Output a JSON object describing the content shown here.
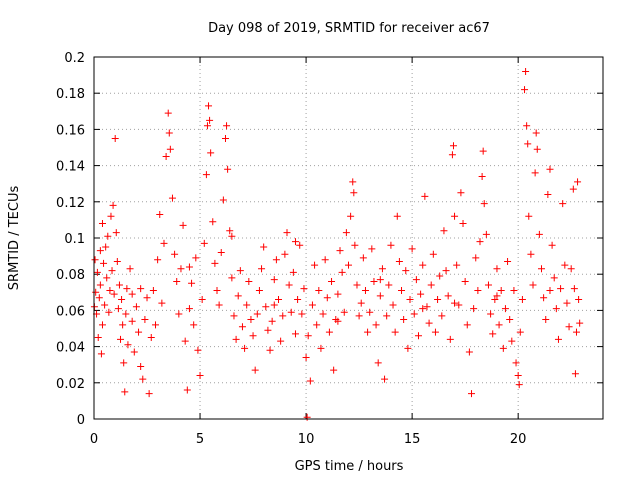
{
  "chart_data": {
    "type": "scatter",
    "title": "Day 098 of 2019, SRMTID for receiver ac67",
    "xlabel": "GPS time / hours",
    "ylabel": "SRMTID / TECUs",
    "xlim": [
      0,
      24
    ],
    "ylim": [
      0,
      0.2
    ],
    "x_ticks": [
      0,
      5,
      10,
      15,
      20
    ],
    "x_tick_labels": [
      "0",
      "5",
      "10",
      "15",
      "20"
    ],
    "y_ticks": [
      0,
      0.02,
      0.04,
      0.06,
      0.08,
      0.1,
      0.12,
      0.14,
      0.16,
      0.18,
      0.2
    ],
    "y_tick_labels": [
      "0",
      "0.02",
      "0.04",
      "0.06",
      "0.08",
      "0.1",
      "0.12",
      "0.14",
      "0.16",
      "0.18",
      "0.2"
    ],
    "grid": true,
    "marker": "+",
    "color": "#ff0000",
    "series": [
      {
        "name": "SRMTID",
        "points": [
          [
            0.02,
            0.062
          ],
          [
            0.05,
            0.088
          ],
          [
            0.08,
            0.07
          ],
          [
            0.12,
            0.058
          ],
          [
            0.16,
            0.081
          ],
          [
            0.2,
            0.045
          ],
          [
            0.25,
            0.067
          ],
          [
            0.3,
            0.074
          ],
          [
            0.35,
            0.036
          ],
          [
            0.4,
            0.052
          ],
          [
            0.45,
            0.086
          ],
          [
            0.5,
            0.063
          ],
          [
            0.55,
            0.095
          ],
          [
            0.6,
            0.078
          ],
          [
            0.65,
            0.101
          ],
          [
            0.7,
            0.059
          ],
          [
            0.75,
            0.071
          ],
          [
            0.8,
            0.112
          ],
          [
            0.85,
            0.082
          ],
          [
            0.9,
            0.118
          ],
          [
            0.95,
            0.069
          ],
          [
            1.0,
            0.155
          ],
          [
            1.05,
            0.103
          ],
          [
            1.1,
            0.087
          ],
          [
            1.15,
            0.061
          ],
          [
            1.2,
            0.074
          ],
          [
            1.25,
            0.044
          ],
          [
            1.3,
            0.066
          ],
          [
            1.35,
            0.052
          ],
          [
            1.4,
            0.031
          ],
          [
            1.45,
            0.015
          ],
          [
            1.5,
            0.058
          ],
          [
            1.55,
            0.072
          ],
          [
            1.6,
            0.041
          ],
          [
            1.7,
            0.083
          ],
          [
            1.8,
            0.054
          ],
          [
            1.9,
            0.037
          ],
          [
            2.0,
            0.062
          ],
          [
            2.1,
            0.048
          ],
          [
            2.2,
            0.029
          ],
          [
            2.3,
            0.022
          ],
          [
            2.4,
            0.055
          ],
          [
            2.5,
            0.067
          ],
          [
            2.6,
            0.014
          ],
          [
            2.7,
            0.045
          ],
          [
            2.8,
            0.071
          ],
          [
            2.9,
            0.052
          ],
          [
            3.0,
            0.088
          ],
          [
            3.1,
            0.113
          ],
          [
            3.2,
            0.064
          ],
          [
            3.3,
            0.097
          ],
          [
            3.4,
            0.145
          ],
          [
            3.5,
            0.169
          ],
          [
            3.55,
            0.158
          ],
          [
            3.6,
            0.149
          ],
          [
            3.7,
            0.122
          ],
          [
            3.8,
            0.091
          ],
          [
            3.9,
            0.076
          ],
          [
            4.0,
            0.058
          ],
          [
            4.1,
            0.083
          ],
          [
            4.2,
            0.107
          ],
          [
            4.3,
            0.043
          ],
          [
            4.4,
            0.016
          ],
          [
            4.5,
            0.061
          ],
          [
            4.6,
            0.075
          ],
          [
            4.7,
            0.052
          ],
          [
            4.8,
            0.089
          ],
          [
            4.9,
            0.038
          ],
          [
            5.0,
            0.024
          ],
          [
            5.1,
            0.066
          ],
          [
            5.2,
            0.097
          ],
          [
            5.3,
            0.135
          ],
          [
            5.35,
            0.162
          ],
          [
            5.4,
            0.173
          ],
          [
            5.45,
            0.165
          ],
          [
            5.5,
            0.147
          ],
          [
            5.6,
            0.109
          ],
          [
            5.7,
            0.086
          ],
          [
            5.8,
            0.071
          ],
          [
            5.9,
            0.063
          ],
          [
            6.0,
            0.092
          ],
          [
            6.1,
            0.121
          ],
          [
            6.2,
            0.155
          ],
          [
            6.25,
            0.162
          ],
          [
            6.3,
            0.138
          ],
          [
            6.4,
            0.104
          ],
          [
            6.5,
            0.078
          ],
          [
            6.6,
            0.057
          ],
          [
            6.7,
            0.044
          ],
          [
            6.8,
            0.068
          ],
          [
            6.9,
            0.082
          ],
          [
            7.0,
            0.051
          ],
          [
            7.1,
            0.039
          ],
          [
            7.2,
            0.063
          ],
          [
            7.3,
            0.076
          ],
          [
            7.4,
            0.055
          ],
          [
            7.5,
            0.046
          ],
          [
            7.6,
            0.027
          ],
          [
            7.7,
            0.058
          ],
          [
            7.8,
            0.071
          ],
          [
            7.9,
            0.083
          ],
          [
            8.0,
            0.095
          ],
          [
            8.1,
            0.062
          ],
          [
            8.2,
            0.049
          ],
          [
            8.3,
            0.038
          ],
          [
            8.4,
            0.054
          ],
          [
            8.5,
            0.077
          ],
          [
            8.6,
            0.088
          ],
          [
            8.7,
            0.066
          ],
          [
            8.8,
            0.043
          ],
          [
            8.9,
            0.057
          ],
          [
            9.0,
            0.091
          ],
          [
            9.1,
            0.103
          ],
          [
            9.2,
            0.074
          ],
          [
            9.3,
            0.059
          ],
          [
            9.4,
            0.081
          ],
          [
            9.5,
            0.047
          ],
          [
            9.6,
            0.066
          ],
          [
            9.7,
            0.096
          ],
          [
            9.8,
            0.058
          ],
          [
            9.9,
            0.072
          ],
          [
            10.0,
            0.034
          ],
          [
            10.05,
            0.001
          ],
          [
            10.1,
            0.046
          ],
          [
            10.2,
            0.021
          ],
          [
            10.3,
            0.063
          ],
          [
            10.4,
            0.085
          ],
          [
            10.5,
            0.052
          ],
          [
            10.6,
            0.071
          ],
          [
            10.7,
            0.039
          ],
          [
            10.8,
            0.058
          ],
          [
            10.9,
            0.088
          ],
          [
            11.0,
            0.067
          ],
          [
            11.1,
            0.048
          ],
          [
            11.2,
            0.076
          ],
          [
            11.3,
            0.027
          ],
          [
            11.4,
            0.055
          ],
          [
            11.5,
            0.069
          ],
          [
            11.6,
            0.093
          ],
          [
            11.7,
            0.081
          ],
          [
            11.8,
            0.059
          ],
          [
            11.9,
            0.103
          ],
          [
            12.0,
            0.085
          ],
          [
            12.1,
            0.112
          ],
          [
            12.2,
            0.131
          ],
          [
            12.25,
            0.125
          ],
          [
            12.3,
            0.096
          ],
          [
            12.4,
            0.074
          ],
          [
            12.5,
            0.057
          ],
          [
            12.6,
            0.064
          ],
          [
            12.7,
            0.089
          ],
          [
            12.8,
            0.071
          ],
          [
            12.9,
            0.048
          ],
          [
            13.0,
            0.059
          ],
          [
            13.1,
            0.094
          ],
          [
            13.2,
            0.076
          ],
          [
            13.3,
            0.052
          ],
          [
            13.4,
            0.031
          ],
          [
            13.5,
            0.068
          ],
          [
            13.6,
            0.083
          ],
          [
            13.7,
            0.022
          ],
          [
            13.8,
            0.057
          ],
          [
            13.9,
            0.074
          ],
          [
            14.0,
            0.096
          ],
          [
            14.1,
            0.063
          ],
          [
            14.2,
            0.048
          ],
          [
            14.3,
            0.112
          ],
          [
            14.4,
            0.087
          ],
          [
            14.5,
            0.071
          ],
          [
            14.6,
            0.055
          ],
          [
            14.7,
            0.082
          ],
          [
            14.8,
            0.039
          ],
          [
            14.9,
            0.066
          ],
          [
            15.0,
            0.094
          ],
          [
            15.1,
            0.058
          ],
          [
            15.2,
            0.077
          ],
          [
            15.3,
            0.046
          ],
          [
            15.4,
            0.069
          ],
          [
            15.5,
            0.085
          ],
          [
            15.6,
            0.123
          ],
          [
            15.7,
            0.062
          ],
          [
            15.8,
            0.053
          ],
          [
            15.9,
            0.074
          ],
          [
            16.0,
            0.091
          ],
          [
            16.1,
            0.048
          ],
          [
            16.2,
            0.066
          ],
          [
            16.3,
            0.079
          ],
          [
            16.4,
            0.057
          ],
          [
            16.5,
            0.104
          ],
          [
            16.6,
            0.082
          ],
          [
            16.7,
            0.068
          ],
          [
            16.8,
            0.044
          ],
          [
            16.9,
            0.146
          ],
          [
            16.95,
            0.151
          ],
          [
            17.0,
            0.112
          ],
          [
            17.1,
            0.085
          ],
          [
            17.2,
            0.063
          ],
          [
            17.3,
            0.125
          ],
          [
            17.4,
            0.108
          ],
          [
            17.5,
            0.076
          ],
          [
            17.6,
            0.052
          ],
          [
            17.7,
            0.037
          ],
          [
            17.8,
            0.014
          ],
          [
            17.9,
            0.061
          ],
          [
            18.0,
            0.089
          ],
          [
            18.1,
            0.071
          ],
          [
            18.2,
            0.098
          ],
          [
            18.3,
            0.134
          ],
          [
            18.35,
            0.148
          ],
          [
            18.4,
            0.119
          ],
          [
            18.5,
            0.102
          ],
          [
            18.6,
            0.074
          ],
          [
            18.7,
            0.058
          ],
          [
            18.8,
            0.047
          ],
          [
            18.9,
            0.066
          ],
          [
            19.0,
            0.083
          ],
          [
            19.1,
            0.052
          ],
          [
            19.2,
            0.071
          ],
          [
            19.3,
            0.039
          ],
          [
            19.4,
            0.061
          ],
          [
            19.5,
            0.087
          ],
          [
            19.6,
            0.055
          ],
          [
            19.7,
            0.043
          ],
          [
            19.8,
            0.071
          ],
          [
            19.9,
            0.031
          ],
          [
            20.0,
            0.024
          ],
          [
            20.05,
            0.019
          ],
          [
            20.1,
            0.048
          ],
          [
            20.2,
            0.066
          ],
          [
            20.3,
            0.182
          ],
          [
            20.35,
            0.192
          ],
          [
            20.4,
            0.162
          ],
          [
            20.45,
            0.152
          ],
          [
            20.5,
            0.112
          ],
          [
            20.6,
            0.091
          ],
          [
            20.7,
            0.074
          ],
          [
            20.8,
            0.136
          ],
          [
            20.85,
            0.158
          ],
          [
            20.9,
            0.149
          ],
          [
            21.0,
            0.102
          ],
          [
            21.1,
            0.083
          ],
          [
            21.2,
            0.067
          ],
          [
            21.3,
            0.055
          ],
          [
            21.4,
            0.124
          ],
          [
            21.5,
            0.138
          ],
          [
            21.6,
            0.096
          ],
          [
            21.7,
            0.078
          ],
          [
            21.8,
            0.061
          ],
          [
            21.9,
            0.044
          ],
          [
            22.0,
            0.072
          ],
          [
            22.1,
            0.119
          ],
          [
            22.2,
            0.085
          ],
          [
            22.3,
            0.064
          ],
          [
            22.4,
            0.051
          ],
          [
            22.5,
            0.083
          ],
          [
            22.6,
            0.127
          ],
          [
            22.65,
            0.072
          ],
          [
            22.7,
            0.025
          ],
          [
            22.75,
            0.048
          ],
          [
            22.8,
            0.131
          ],
          [
            22.85,
            0.066
          ],
          [
            22.9,
            0.053
          ],
          [
            0.3,
            0.093
          ],
          [
            1.8,
            0.069
          ],
          [
            2.2,
            0.072
          ],
          [
            4.5,
            0.084
          ],
          [
            6.5,
            0.101
          ],
          [
            8.5,
            0.063
          ],
          [
            11.5,
            0.054
          ],
          [
            13.5,
            0.077
          ],
          [
            15.5,
            0.061
          ],
          [
            17.0,
            0.064
          ],
          [
            19.0,
            0.068
          ],
          [
            21.5,
            0.071
          ],
          [
            0.4,
            0.108
          ],
          [
            9.5,
            0.098
          ]
        ]
      }
    ]
  }
}
